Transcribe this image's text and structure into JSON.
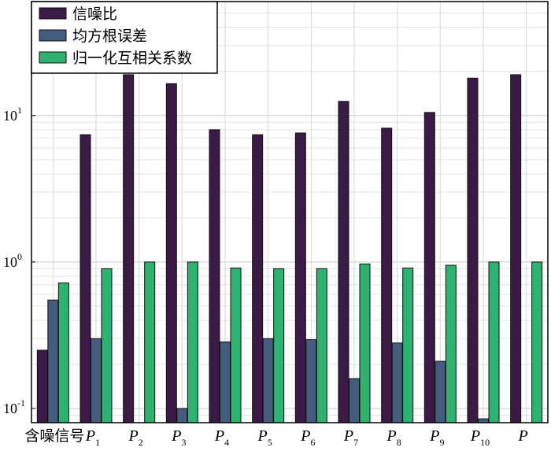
{
  "chart_data": {
    "type": "bar",
    "yscale": "log",
    "ylim": [
      0.08,
      60
    ],
    "grid": true,
    "legend_position": "top-left",
    "title": "",
    "xlabel": "",
    "ylabel": "",
    "categories": [
      {
        "base": "含噪信号",
        "sub": ""
      },
      {
        "base": "P",
        "sub": "1"
      },
      {
        "base": "P",
        "sub": "2"
      },
      {
        "base": "P",
        "sub": "3"
      },
      {
        "base": "P",
        "sub": "4"
      },
      {
        "base": "P",
        "sub": "5"
      },
      {
        "base": "P",
        "sub": "6"
      },
      {
        "base": "P",
        "sub": "7"
      },
      {
        "base": "P",
        "sub": "8"
      },
      {
        "base": "P",
        "sub": "9"
      },
      {
        "base": "P",
        "sub": "10"
      },
      {
        "base": "P",
        "sub": ""
      }
    ],
    "yticks": [
      {
        "base": "10",
        "exp": "-1",
        "value": 0.1
      },
      {
        "base": "10",
        "exp": "0",
        "value": 1
      },
      {
        "base": "10",
        "exp": "1",
        "value": 10
      }
    ],
    "series": [
      {
        "name": "信噪比",
        "color": "#3b1a48",
        "values": [
          0.25,
          7.4,
          19,
          16.5,
          8.0,
          7.4,
          7.6,
          12.5,
          8.2,
          10.5,
          18,
          19
        ]
      },
      {
        "name": "均方根误差",
        "color": "#445d7e",
        "values": [
          0.55,
          0.3,
          null,
          0.1,
          0.285,
          0.3,
          0.295,
          0.16,
          0.28,
          0.21,
          0.085,
          null
        ]
      },
      {
        "name": "归一化互相关系数",
        "color": "#2fb16f",
        "values": [
          0.72,
          0.9,
          1.0,
          1.0,
          0.91,
          0.9,
          0.9,
          0.97,
          0.91,
          0.95,
          1.0,
          1.0
        ]
      }
    ]
  }
}
